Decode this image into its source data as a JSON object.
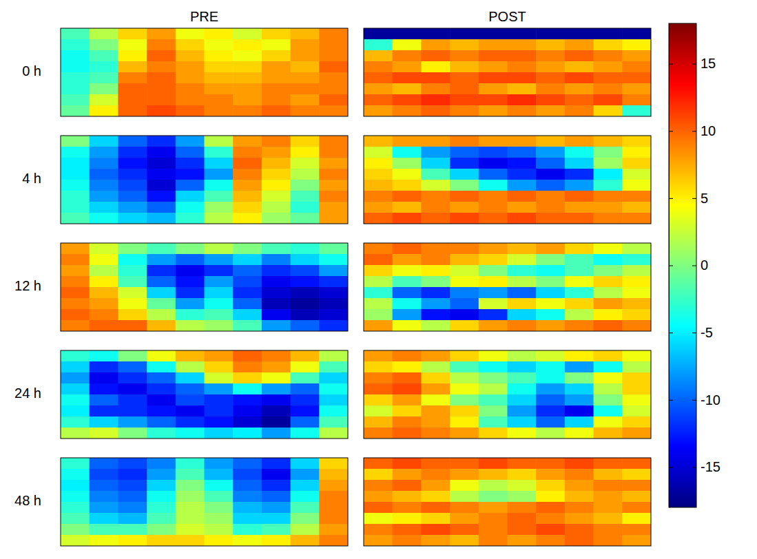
{
  "chart_data": {
    "type": "heatmap",
    "column_labels": [
      "PRE",
      "POST"
    ],
    "row_labels": [
      "0 h",
      "4 h",
      "12 h",
      "24 h",
      "48 h"
    ],
    "colorbar_range": [
      -18,
      18
    ],
    "colorbar_ticks": [
      -15,
      -10,
      -5,
      0,
      5,
      10,
      15
    ],
    "cells": [
      [
        [
          [
            -2,
            2,
            6,
            8,
            4,
            5,
            3,
            6,
            7,
            9
          ],
          [
            -3,
            0,
            4,
            9,
            6,
            4,
            5,
            4,
            8,
            9
          ],
          [
            -4,
            -2,
            5,
            10,
            7,
            5,
            4,
            6,
            8,
            9
          ],
          [
            -4,
            -3,
            7,
            9,
            8,
            6,
            6,
            8,
            7,
            10
          ],
          [
            -3,
            -2,
            9,
            10,
            8,
            7,
            7,
            8,
            8,
            9
          ],
          [
            -3,
            0,
            10,
            10,
            9,
            8,
            8,
            9,
            9,
            9
          ],
          [
            -2,
            3,
            10,
            10,
            9,
            9,
            8,
            9,
            8,
            10
          ],
          [
            -1,
            5,
            10,
            11,
            10,
            9,
            9,
            10,
            9,
            9
          ]
        ],
        [
          [
            -17,
            -17,
            -17,
            -17,
            -17,
            -17,
            -17,
            -17,
            -17,
            -17
          ],
          [
            -3,
            4,
            8,
            7,
            8,
            8,
            7,
            8,
            6,
            5
          ],
          [
            7,
            9,
            10,
            9,
            10,
            10,
            9,
            10,
            9,
            8
          ],
          [
            9,
            8,
            5,
            7,
            8,
            9,
            8,
            7,
            8,
            9
          ],
          [
            10,
            11,
            11,
            10,
            11,
            11,
            10,
            11,
            10,
            10
          ],
          [
            8,
            7,
            9,
            10,
            8,
            7,
            9,
            8,
            9,
            8
          ],
          [
            10,
            11,
            12,
            11,
            11,
            12,
            11,
            10,
            11,
            9
          ],
          [
            8,
            9,
            10,
            9,
            8,
            9,
            8,
            9,
            6,
            -3
          ]
        ]
      ],
      [
        [
          [
            0,
            -6,
            -10,
            -12,
            -8,
            2,
            8,
            9,
            6,
            9
          ],
          [
            -4,
            -8,
            -12,
            -14,
            -10,
            -3,
            9,
            8,
            5,
            9
          ],
          [
            -5,
            -9,
            -13,
            -15,
            -12,
            -6,
            10,
            7,
            3,
            8
          ],
          [
            -5,
            -10,
            -12,
            -14,
            -13,
            -8,
            9,
            6,
            2,
            9
          ],
          [
            -4,
            -9,
            -11,
            -15,
            -10,
            -4,
            8,
            5,
            0,
            8
          ],
          [
            -3,
            -8,
            -10,
            -13,
            -6,
            -2,
            7,
            3,
            -2,
            9
          ],
          [
            -3,
            -6,
            -8,
            -10,
            -4,
            1,
            6,
            2,
            -3,
            8
          ],
          [
            -2,
            -4,
            -6,
            -7,
            -3,
            2,
            5,
            1,
            -1,
            8
          ]
        ],
        [
          [
            7,
            8,
            8,
            9,
            8,
            8,
            7,
            8,
            7,
            6
          ],
          [
            3,
            -4,
            -8,
            -10,
            -11,
            -10,
            -8,
            -4,
            0,
            5
          ],
          [
            5,
            1,
            -6,
            -12,
            -14,
            -13,
            -10,
            -6,
            1,
            6
          ],
          [
            6,
            4,
            -2,
            -6,
            -10,
            -12,
            -14,
            -12,
            -5,
            3
          ],
          [
            7,
            6,
            3,
            0,
            -4,
            -8,
            -10,
            -8,
            -3,
            4
          ],
          [
            9,
            10,
            9,
            10,
            9,
            10,
            9,
            10,
            9,
            9
          ],
          [
            8,
            7,
            9,
            8,
            9,
            8,
            9,
            8,
            8,
            7
          ],
          [
            10,
            11,
            10,
            11,
            10,
            11,
            10,
            10,
            9,
            9
          ]
        ]
      ],
      [
        [
          [
            8,
            3,
            0,
            -2,
            0,
            2,
            0,
            -2,
            -3,
            -1
          ],
          [
            9,
            4,
            -4,
            -8,
            -10,
            -8,
            -6,
            -9,
            -6,
            -4
          ],
          [
            8,
            2,
            -3,
            -12,
            -14,
            -12,
            -10,
            -12,
            -11,
            -8
          ],
          [
            9,
            5,
            -2,
            -10,
            -13,
            -8,
            -11,
            -14,
            -13,
            -12
          ],
          [
            10,
            7,
            3,
            -6,
            -12,
            -6,
            -12,
            -15,
            -16,
            -15
          ],
          [
            9,
            8,
            4,
            -1,
            -8,
            -4,
            -10,
            -16,
            -17,
            -16
          ],
          [
            10,
            9,
            6,
            2,
            -3,
            -2,
            -6,
            -14,
            -16,
            -15
          ],
          [
            9,
            10,
            10,
            7,
            2,
            1,
            -2,
            -8,
            -10,
            -12
          ]
        ],
        [
          [
            9,
            10,
            9,
            9,
            8,
            7,
            8,
            6,
            4,
            2
          ],
          [
            10,
            8,
            9,
            7,
            6,
            3,
            0,
            -2,
            -4,
            -3
          ],
          [
            6,
            4,
            5,
            3,
            0,
            -3,
            -4,
            -2,
            0,
            2
          ],
          [
            2,
            -2,
            0,
            4,
            5,
            2,
            0,
            4,
            6,
            5
          ],
          [
            -3,
            -10,
            -12,
            -9,
            -8,
            -10,
            -6,
            -3,
            2,
            4
          ],
          [
            2,
            -4,
            -8,
            -10,
            3,
            6,
            4,
            6,
            8,
            7
          ],
          [
            1,
            -8,
            -13,
            -14,
            -12,
            -6,
            -4,
            2,
            5,
            6
          ],
          [
            8,
            4,
            2,
            6,
            8,
            9,
            8,
            9,
            10,
            9
          ]
        ]
      ],
      [
        [
          [
            -3,
            -4,
            0,
            4,
            7,
            8,
            10,
            9,
            7,
            2
          ],
          [
            -6,
            -12,
            -10,
            -4,
            2,
            6,
            9,
            8,
            4,
            -2
          ],
          [
            -8,
            -14,
            -12,
            -10,
            -6,
            3,
            6,
            4,
            -2,
            -6
          ],
          [
            -6,
            -13,
            -14,
            -12,
            -10,
            -8,
            -4,
            -8,
            -10,
            -4
          ],
          [
            -4,
            -10,
            -12,
            -14,
            -11,
            -12,
            -13,
            -14,
            -12,
            -6
          ],
          [
            -5,
            -12,
            -12,
            -13,
            -14,
            -12,
            -14,
            -16,
            -13,
            -4
          ],
          [
            -3,
            -6,
            -8,
            -10,
            -12,
            -13,
            -15,
            -17,
            -10,
            -2
          ],
          [
            2,
            3,
            0,
            -3,
            -4,
            -6,
            -5,
            -8,
            -4,
            2
          ]
        ],
        [
          [
            8,
            9,
            8,
            6,
            4,
            2,
            3,
            5,
            6,
            4
          ],
          [
            6,
            5,
            2,
            -2,
            -4,
            -6,
            -4,
            -8,
            -4,
            2
          ],
          [
            9,
            10,
            6,
            2,
            0,
            -2,
            -4,
            0,
            4,
            6
          ],
          [
            10,
            11,
            8,
            4,
            2,
            -4,
            -8,
            -6,
            2,
            6
          ],
          [
            6,
            8,
            4,
            0,
            -2,
            -6,
            -10,
            -8,
            0,
            4
          ],
          [
            3,
            6,
            8,
            6,
            0,
            -8,
            -12,
            -14,
            -4,
            3
          ],
          [
            7,
            9,
            8,
            5,
            -2,
            -6,
            -10,
            -6,
            4,
            6
          ],
          [
            9,
            10,
            9,
            8,
            6,
            4,
            2,
            4,
            7,
            8
          ]
        ]
      ],
      [
        [
          [
            -3,
            -10,
            -11,
            -9,
            -3,
            -8,
            -10,
            -12,
            -6,
            6
          ],
          [
            -4,
            -11,
            -12,
            -8,
            -2,
            -7,
            -11,
            -14,
            -8,
            7
          ],
          [
            -5,
            -10,
            -11,
            -6,
            0,
            -4,
            -10,
            -12,
            -6,
            8
          ],
          [
            -4,
            -9,
            -10,
            -4,
            1,
            -2,
            -9,
            -10,
            -4,
            9
          ],
          [
            -3,
            -8,
            -9,
            -3,
            2,
            0,
            -7,
            -8,
            -2,
            9
          ],
          [
            -2,
            -6,
            -7,
            -2,
            2,
            1,
            -6,
            -6,
            0,
            9
          ],
          [
            0,
            -2,
            -2,
            0,
            3,
            2,
            -3,
            -2,
            2,
            8
          ],
          [
            3,
            4,
            5,
            6,
            6,
            5,
            4,
            5,
            7,
            9
          ]
        ],
        [
          [
            10,
            11,
            10,
            10,
            11,
            10,
            10,
            11,
            10,
            10
          ],
          [
            6,
            8,
            9,
            8,
            7,
            6,
            8,
            9,
            7,
            6
          ],
          [
            9,
            10,
            8,
            4,
            2,
            3,
            6,
            8,
            9,
            9
          ],
          [
            8,
            7,
            6,
            2,
            0,
            1,
            5,
            7,
            8,
            7
          ],
          [
            10,
            9,
            10,
            9,
            8,
            9,
            10,
            9,
            8,
            9
          ],
          [
            4,
            5,
            6,
            8,
            9,
            10,
            9,
            8,
            7,
            5
          ],
          [
            9,
            10,
            11,
            10,
            9,
            10,
            11,
            10,
            9,
            9
          ],
          [
            8,
            9,
            8,
            7,
            9,
            8,
            9,
            10,
            9,
            8
          ]
        ]
      ]
    ]
  }
}
